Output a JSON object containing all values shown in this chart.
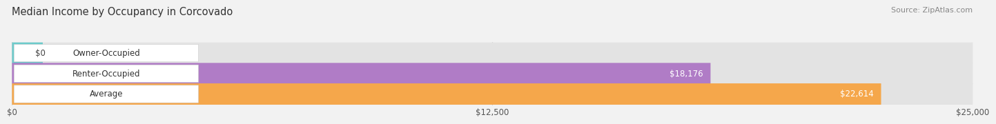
{
  "title": "Median Income by Occupancy in Corcovado",
  "source": "Source: ZipAtlas.com",
  "categories": [
    "Owner-Occupied",
    "Renter-Occupied",
    "Average"
  ],
  "values": [
    0,
    18176,
    22614
  ],
  "bar_colors": [
    "#6dcbcb",
    "#b07cc6",
    "#f5a74b"
  ],
  "bar_labels": [
    "$0",
    "$18,176",
    "$22,614"
  ],
  "xlim": [
    0,
    25000
  ],
  "xticks": [
    0,
    12500,
    25000
  ],
  "xtick_labels": [
    "$0",
    "$12,500",
    "$25,000"
  ],
  "bg_color": "#f2f2f2",
  "bar_bg_color": "#e3e3e3",
  "bar_height": 0.52,
  "label_fontsize": 8.5,
  "title_fontsize": 10.5,
  "source_fontsize": 8
}
